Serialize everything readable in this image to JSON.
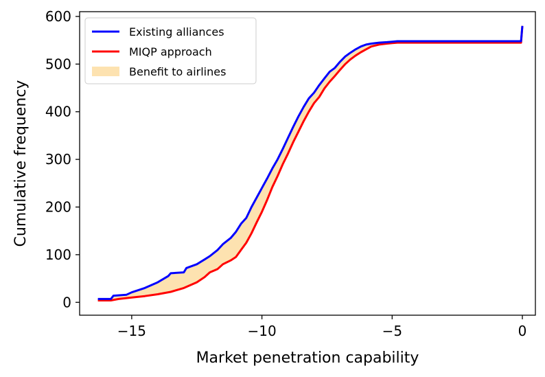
{
  "chart_data": {
    "type": "line",
    "title": "",
    "xlabel": "Market penetration capability",
    "ylabel": "Cumulative frequency",
    "xlim": [
      -17,
      0.5
    ],
    "ylim": [
      -27,
      610
    ],
    "xticks": [
      -15,
      -10,
      -5,
      0
    ],
    "xtick_labels": [
      "−15",
      "−10",
      "−5",
      "0"
    ],
    "yticks": [
      0,
      100,
      200,
      300,
      400,
      500,
      600
    ],
    "ytick_labels": [
      "0",
      "100",
      "200",
      "300",
      "400",
      "500",
      "600"
    ],
    "grid": false,
    "legend_position": "top-left",
    "series": [
      {
        "name": "Existing alliances",
        "color": "#0000ff",
        "x": [
          -16.3,
          -15.8,
          -15.7,
          -15.2,
          -15.0,
          -14.5,
          -14.0,
          -13.6,
          -13.5,
          -13.0,
          -12.9,
          -12.5,
          -12.2,
          -12.0,
          -11.7,
          -11.5,
          -11.2,
          -11.0,
          -10.8,
          -10.6,
          -10.4,
          -10.2,
          -10.0,
          -9.8,
          -9.6,
          -9.4,
          -9.2,
          -9.0,
          -8.8,
          -8.6,
          -8.4,
          -8.2,
          -8.0,
          -7.8,
          -7.6,
          -7.4,
          -7.2,
          -7.0,
          -6.8,
          -6.6,
          -6.4,
          -6.2,
          -6.0,
          -5.8,
          -5.5,
          -5.2,
          -5.0,
          -4.8,
          -3.0,
          -1.0,
          -0.05,
          0.0
        ],
        "y": [
          7,
          7,
          14,
          16,
          21,
          30,
          42,
          55,
          61,
          63,
          72,
          80,
          90,
          97,
          110,
          122,
          135,
          148,
          165,
          177,
          200,
          220,
          240,
          260,
          281,
          300,
          322,
          345,
          368,
          390,
          410,
          428,
          440,
          456,
          470,
          484,
          492,
          505,
          516,
          524,
          531,
          537,
          541,
          543,
          545,
          546,
          547,
          548,
          548,
          548,
          548,
          580
        ]
      },
      {
        "name": "MIQP approach",
        "color": "#ff0000",
        "x": [
          -16.3,
          -15.8,
          -15.5,
          -15.0,
          -14.5,
          -14.0,
          -13.5,
          -13.0,
          -12.5,
          -12.2,
          -12.0,
          -11.7,
          -11.5,
          -11.2,
          -11.0,
          -10.8,
          -10.6,
          -10.4,
          -10.2,
          -10.0,
          -9.8,
          -9.6,
          -9.4,
          -9.2,
          -9.0,
          -8.8,
          -8.6,
          -8.4,
          -8.2,
          -8.0,
          -7.8,
          -7.6,
          -7.4,
          -7.2,
          -7.0,
          -6.8,
          -6.6,
          -6.4,
          -6.2,
          -6.0,
          -5.8,
          -5.5,
          -5.2,
          -5.0,
          -4.8,
          -3.0,
          -1.0,
          -0.05,
          0.0
        ],
        "y": [
          4,
          4,
          7,
          10,
          13,
          17,
          22,
          30,
          42,
          53,
          63,
          70,
          80,
          88,
          95,
          110,
          125,
          145,
          168,
          190,
          215,
          242,
          265,
          290,
          312,
          336,
          358,
          380,
          400,
          418,
          431,
          449,
          463,
          475,
          488,
          500,
          510,
          518,
          525,
          531,
          537,
          541,
          543,
          544,
          545,
          545,
          545,
          545,
          580
        ]
      }
    ],
    "fill_between": {
      "name": "Benefit to airlines",
      "color": "#fde2b0",
      "between": [
        "Existing alliances",
        "MIQP approach"
      ]
    }
  }
}
